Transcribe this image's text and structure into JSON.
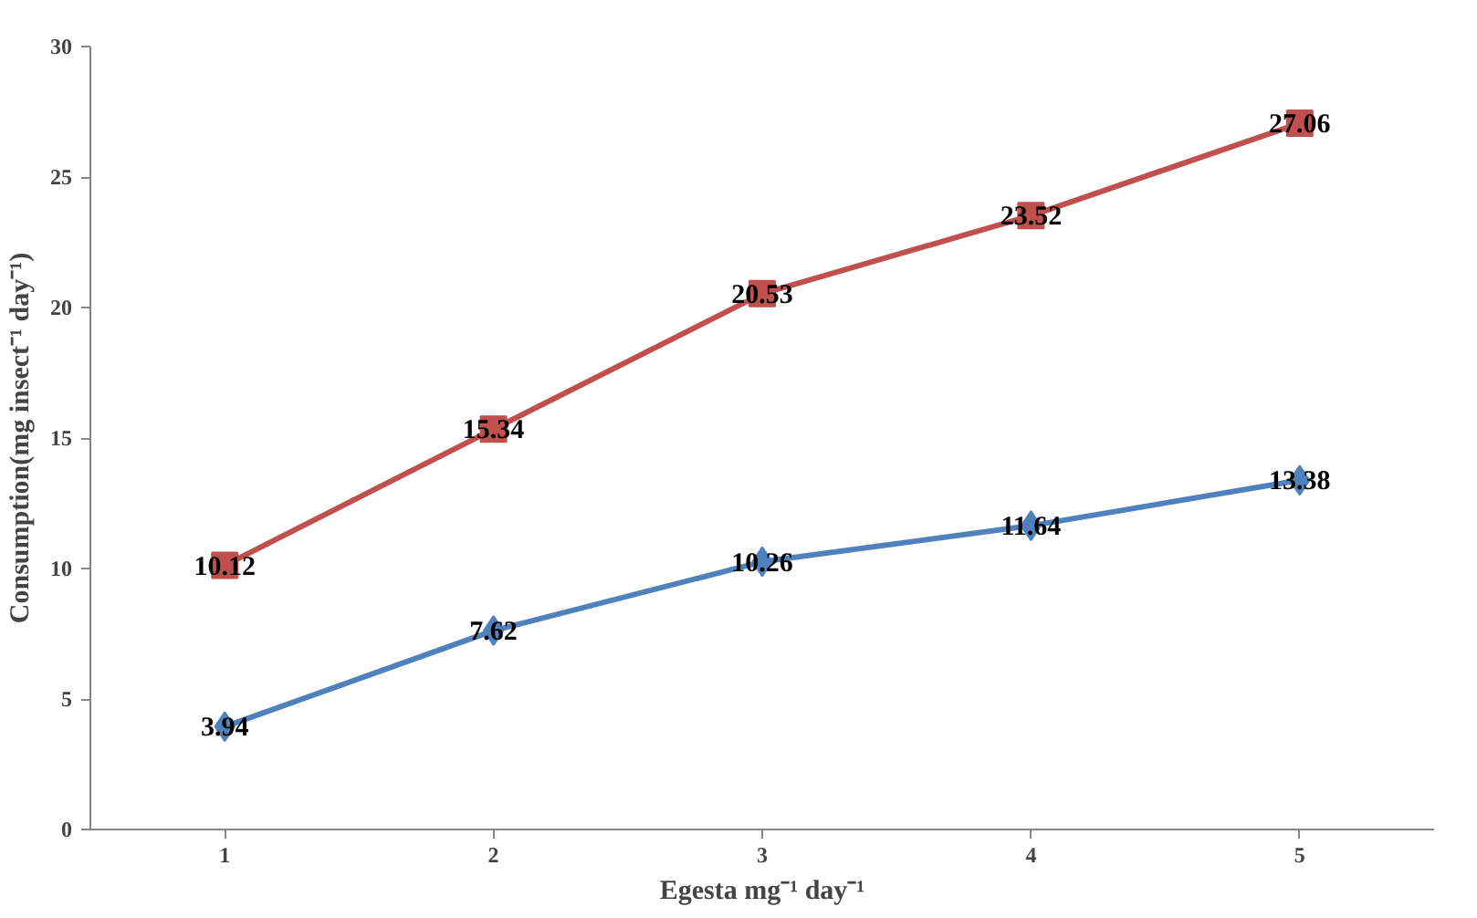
{
  "chart_data": {
    "type": "line",
    "xlabel": "Egesta mg⁻¹ day⁻¹",
    "ylabel": "Consumption(mg insect⁻¹ day⁻¹)",
    "categories": [
      "1",
      "2",
      "3",
      "4",
      "5"
    ],
    "series": [
      {
        "color": "#4f81bd",
        "marker": "diamond",
        "values": [
          3.94,
          7.62,
          10.26,
          11.64,
          13.38
        ]
      },
      {
        "color": "#c0504d",
        "marker": "square",
        "values": [
          10.12,
          15.34,
          20.53,
          23.52,
          27.06
        ]
      }
    ],
    "ylim": [
      0,
      30
    ],
    "yticks": [
      0,
      5,
      10,
      15,
      20,
      25,
      30
    ],
    "data_labels": true,
    "grid": false
  }
}
